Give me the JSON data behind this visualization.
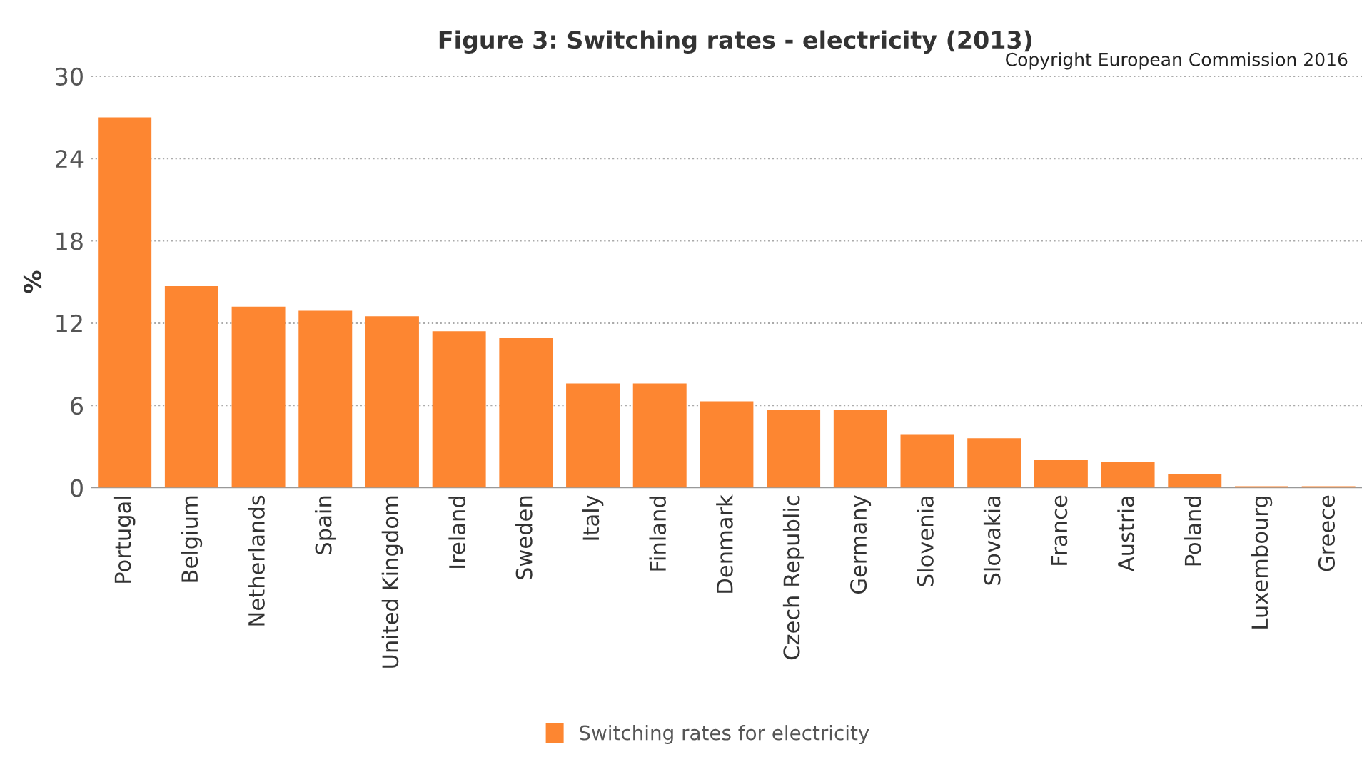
{
  "chart_data": {
    "type": "bar",
    "title": "Figure 3: Switching rates - electricity (2013)",
    "ylabel": "%",
    "annotations": [
      "Copyright European Commission 2016"
    ],
    "categories": [
      "Portugal",
      "Belgium",
      "Netherlands",
      "Spain",
      "United Kingdom",
      "Ireland",
      "Sweden",
      "Italy",
      "Finland",
      "Denmark",
      "Czech Republic",
      "Germany",
      "Slovenia",
      "Slovakia",
      "France",
      "Austria",
      "Poland",
      "Luxembourg",
      "Greece"
    ],
    "series": [
      {
        "name": "Switching rates for electricity",
        "color": "#fd8631",
        "values": [
          27.0,
          14.7,
          13.2,
          12.9,
          12.5,
          11.4,
          10.9,
          7.6,
          7.6,
          6.3,
          5.7,
          5.7,
          3.9,
          3.6,
          2.0,
          1.9,
          1.0,
          0.1,
          0.1
        ]
      }
    ],
    "ylim": [
      0,
      30
    ],
    "yticks": [
      0,
      6,
      12,
      18,
      24,
      30
    ],
    "grid": "y",
    "legend": "bottom"
  }
}
